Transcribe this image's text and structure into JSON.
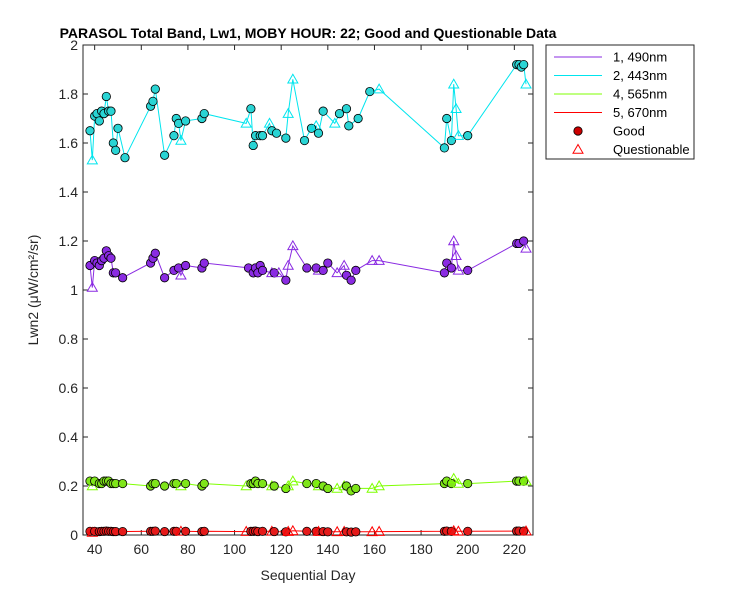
{
  "chart_data": {
    "type": "line",
    "title": "PARASOL Total Band, Lw1, MOBY HOUR: 22;  Good and Questionable Data",
    "xlabel": "Sequential Day",
    "ylabel": "Lwn2 (μW/cm²/sr)",
    "xlim": [
      35,
      228
    ],
    "ylim": [
      0,
      2
    ],
    "xticks": [
      40,
      60,
      80,
      100,
      120,
      140,
      160,
      180,
      200,
      220
    ],
    "yticks": [
      0,
      0.2,
      0.4,
      0.6,
      0.8,
      1,
      1.2,
      1.4,
      1.6,
      1.8,
      2
    ],
    "ytick_labels": [
      "0",
      "0.2",
      "0.4",
      "0.6",
      "0.8",
      "1",
      "1.2",
      "1.4",
      "1.6",
      "1.8",
      "2"
    ],
    "grid": false,
    "legend_position": "outside-top-right",
    "series": [
      {
        "name": "1, 490nm",
        "color": "#8a2be2",
        "fill": "#8a2be2",
        "points": [
          [
            38,
            1.1,
            "g"
          ],
          [
            39,
            1.01,
            "q"
          ],
          [
            40,
            1.12,
            "g"
          ],
          [
            41,
            1.11,
            "g"
          ],
          [
            42,
            1.1,
            "g"
          ],
          [
            43,
            1.12,
            "g"
          ],
          [
            44,
            1.13,
            "g"
          ],
          [
            45,
            1.16,
            "g"
          ],
          [
            46,
            1.14,
            "g"
          ],
          [
            47,
            1.13,
            "g"
          ],
          [
            48,
            1.07,
            "g"
          ],
          [
            49,
            1.07,
            "g"
          ],
          [
            52,
            1.05,
            "g"
          ],
          [
            64,
            1.11,
            "g"
          ],
          [
            65,
            1.13,
            "g"
          ],
          [
            66,
            1.15,
            "g"
          ],
          [
            70,
            1.05,
            "g"
          ],
          [
            74,
            1.08,
            "g"
          ],
          [
            76,
            1.09,
            "g"
          ],
          [
            77,
            1.06,
            "q"
          ],
          [
            79,
            1.1,
            "g"
          ],
          [
            86,
            1.09,
            "g"
          ],
          [
            87,
            1.11,
            "g"
          ],
          [
            106,
            1.09,
            "g"
          ],
          [
            108,
            1.07,
            "g"
          ],
          [
            109,
            1.09,
            "g"
          ],
          [
            110,
            1.07,
            "g"
          ],
          [
            111,
            1.1,
            "g"
          ],
          [
            112,
            1.08,
            "g"
          ],
          [
            116,
            1.07,
            "q"
          ],
          [
            117,
            1.07,
            "g"
          ],
          [
            119,
            1.07,
            "q"
          ],
          [
            122,
            1.04,
            "g"
          ],
          [
            123,
            1.1,
            "q"
          ],
          [
            125,
            1.18,
            "q"
          ],
          [
            131,
            1.09,
            "g"
          ],
          [
            135,
            1.09,
            "g"
          ],
          [
            136,
            1.08,
            "q"
          ],
          [
            138,
            1.08,
            "g"
          ],
          [
            140,
            1.11,
            "g"
          ],
          [
            144,
            1.07,
            "q"
          ],
          [
            147,
            1.1,
            "q"
          ],
          [
            148,
            1.06,
            "g"
          ],
          [
            150,
            1.04,
            "g"
          ],
          [
            152,
            1.08,
            "g"
          ],
          [
            159,
            1.12,
            "q"
          ],
          [
            162,
            1.12,
            "q"
          ],
          [
            190,
            1.07,
            "g"
          ],
          [
            191,
            1.11,
            "g"
          ],
          [
            193,
            1.09,
            "g"
          ],
          [
            194,
            1.2,
            "q"
          ],
          [
            195,
            1.14,
            "q"
          ],
          [
            196,
            1.08,
            "q"
          ],
          [
            200,
            1.08,
            "g"
          ],
          [
            221,
            1.19,
            "g"
          ],
          [
            222,
            1.19,
            "g"
          ],
          [
            224,
            1.2,
            "g"
          ],
          [
            225,
            1.17,
            "q"
          ]
        ]
      },
      {
        "name": "2, 443nm",
        "color": "#00e5ee",
        "fill": "#2ad4d4",
        "points": [
          [
            38,
            1.65,
            "g"
          ],
          [
            39,
            1.53,
            "q"
          ],
          [
            40,
            1.71,
            "g"
          ],
          [
            41,
            1.72,
            "g"
          ],
          [
            42,
            1.69,
            "g"
          ],
          [
            43,
            1.73,
            "g"
          ],
          [
            44,
            1.72,
            "g"
          ],
          [
            45,
            1.79,
            "g"
          ],
          [
            46,
            1.73,
            "g"
          ],
          [
            47,
            1.73,
            "g"
          ],
          [
            48,
            1.6,
            "g"
          ],
          [
            49,
            1.57,
            "g"
          ],
          [
            50,
            1.66,
            "g"
          ],
          [
            53,
            1.54,
            "g"
          ],
          [
            64,
            1.75,
            "g"
          ],
          [
            65,
            1.77,
            "g"
          ],
          [
            66,
            1.82,
            "g"
          ],
          [
            70,
            1.55,
            "g"
          ],
          [
            74,
            1.63,
            "g"
          ],
          [
            75,
            1.7,
            "g"
          ],
          [
            76,
            1.68,
            "g"
          ],
          [
            77,
            1.61,
            "q"
          ],
          [
            79,
            1.69,
            "g"
          ],
          [
            86,
            1.7,
            "g"
          ],
          [
            87,
            1.72,
            "g"
          ],
          [
            105,
            1.68,
            "q"
          ],
          [
            107,
            1.74,
            "g"
          ],
          [
            108,
            1.59,
            "g"
          ],
          [
            109,
            1.63,
            "g"
          ],
          [
            111,
            1.63,
            "g"
          ],
          [
            112,
            1.63,
            "g"
          ],
          [
            115,
            1.68,
            "q"
          ],
          [
            116,
            1.65,
            "g"
          ],
          [
            118,
            1.64,
            "g"
          ],
          [
            122,
            1.62,
            "g"
          ],
          [
            123,
            1.72,
            "q"
          ],
          [
            125,
            1.86,
            "q"
          ],
          [
            130,
            1.61,
            "g"
          ],
          [
            133,
            1.66,
            "g"
          ],
          [
            135,
            1.67,
            "q"
          ],
          [
            136,
            1.64,
            "g"
          ],
          [
            138,
            1.73,
            "g"
          ],
          [
            143,
            1.68,
            "q"
          ],
          [
            145,
            1.72,
            "g"
          ],
          [
            148,
            1.74,
            "g"
          ],
          [
            149,
            1.67,
            "g"
          ],
          [
            153,
            1.7,
            "g"
          ],
          [
            158,
            1.81,
            "g"
          ],
          [
            162,
            1.82,
            "q"
          ],
          [
            190,
            1.58,
            "g"
          ],
          [
            191,
            1.7,
            "g"
          ],
          [
            193,
            1.61,
            "g"
          ],
          [
            194,
            1.84,
            "q"
          ],
          [
            195,
            1.74,
            "q"
          ],
          [
            196,
            1.63,
            "q"
          ],
          [
            200,
            1.63,
            "g"
          ],
          [
            221,
            1.92,
            "g"
          ],
          [
            222,
            1.92,
            "g"
          ],
          [
            223,
            1.91,
            "g"
          ],
          [
            224,
            1.92,
            "g"
          ],
          [
            225,
            1.84,
            "q"
          ]
        ]
      },
      {
        "name": "4, 565nm",
        "color": "#7fff00",
        "fill": "#7fe51a",
        "points": [
          [
            38,
            0.22,
            "g"
          ],
          [
            39,
            0.2,
            "q"
          ],
          [
            40,
            0.22,
            "g"
          ],
          [
            42,
            0.21,
            "g"
          ],
          [
            43,
            0.21,
            "g"
          ],
          [
            44,
            0.22,
            "g"
          ],
          [
            45,
            0.22,
            "g"
          ],
          [
            46,
            0.22,
            "g"
          ],
          [
            47,
            0.21,
            "g"
          ],
          [
            48,
            0.21,
            "g"
          ],
          [
            49,
            0.21,
            "g"
          ],
          [
            52,
            0.21,
            "g"
          ],
          [
            64,
            0.2,
            "g"
          ],
          [
            65,
            0.21,
            "g"
          ],
          [
            66,
            0.21,
            "g"
          ],
          [
            70,
            0.2,
            "g"
          ],
          [
            74,
            0.21,
            "g"
          ],
          [
            75,
            0.21,
            "g"
          ],
          [
            77,
            0.2,
            "q"
          ],
          [
            79,
            0.21,
            "g"
          ],
          [
            86,
            0.2,
            "g"
          ],
          [
            87,
            0.21,
            "g"
          ],
          [
            105,
            0.2,
            "q"
          ],
          [
            107,
            0.21,
            "g"
          ],
          [
            108,
            0.21,
            "g"
          ],
          [
            109,
            0.22,
            "g"
          ],
          [
            110,
            0.21,
            "g"
          ],
          [
            112,
            0.21,
            "g"
          ],
          [
            116,
            0.2,
            "q"
          ],
          [
            117,
            0.2,
            "g"
          ],
          [
            122,
            0.19,
            "g"
          ],
          [
            123,
            0.2,
            "q"
          ],
          [
            125,
            0.22,
            "q"
          ],
          [
            131,
            0.21,
            "g"
          ],
          [
            135,
            0.21,
            "g"
          ],
          [
            136,
            0.2,
            "q"
          ],
          [
            138,
            0.2,
            "g"
          ],
          [
            140,
            0.19,
            "g"
          ],
          [
            144,
            0.19,
            "q"
          ],
          [
            147,
            0.2,
            "q"
          ],
          [
            148,
            0.2,
            "g"
          ],
          [
            150,
            0.18,
            "g"
          ],
          [
            152,
            0.19,
            "g"
          ],
          [
            159,
            0.19,
            "q"
          ],
          [
            162,
            0.2,
            "q"
          ],
          [
            190,
            0.21,
            "g"
          ],
          [
            191,
            0.22,
            "g"
          ],
          [
            193,
            0.21,
            "g"
          ],
          [
            194,
            0.23,
            "q"
          ],
          [
            196,
            0.21,
            "q"
          ],
          [
            200,
            0.21,
            "g"
          ],
          [
            221,
            0.22,
            "g"
          ],
          [
            222,
            0.22,
            "g"
          ],
          [
            224,
            0.22,
            "g"
          ],
          [
            225,
            0.22,
            "q"
          ]
        ]
      },
      {
        "name": "5, 670nm",
        "color": "#ff0000",
        "fill": "#e51a1a",
        "points": [
          [
            38,
            0.015,
            "g"
          ],
          [
            39,
            0.01,
            "q"
          ],
          [
            40,
            0.015,
            "g"
          ],
          [
            42,
            0.014,
            "g"
          ],
          [
            43,
            0.015,
            "g"
          ],
          [
            44,
            0.015,
            "g"
          ],
          [
            45,
            0.016,
            "g"
          ],
          [
            46,
            0.015,
            "g"
          ],
          [
            47,
            0.015,
            "g"
          ],
          [
            48,
            0.014,
            "g"
          ],
          [
            49,
            0.014,
            "g"
          ],
          [
            52,
            0.014,
            "g"
          ],
          [
            64,
            0.015,
            "g"
          ],
          [
            65,
            0.015,
            "g"
          ],
          [
            66,
            0.016,
            "g"
          ],
          [
            70,
            0.014,
            "g"
          ],
          [
            74,
            0.015,
            "g"
          ],
          [
            75,
            0.015,
            "g"
          ],
          [
            77,
            0.015,
            "q"
          ],
          [
            79,
            0.015,
            "g"
          ],
          [
            86,
            0.014,
            "g"
          ],
          [
            87,
            0.015,
            "g"
          ],
          [
            105,
            0.014,
            "q"
          ],
          [
            107,
            0.015,
            "g"
          ],
          [
            108,
            0.015,
            "g"
          ],
          [
            109,
            0.016,
            "g"
          ],
          [
            110,
            0.014,
            "g"
          ],
          [
            112,
            0.015,
            "g"
          ],
          [
            116,
            0.015,
            "q"
          ],
          [
            117,
            0.014,
            "g"
          ],
          [
            122,
            0.013,
            "g"
          ],
          [
            123,
            0.014,
            "q"
          ],
          [
            125,
            0.017,
            "q"
          ],
          [
            131,
            0.015,
            "g"
          ],
          [
            135,
            0.015,
            "g"
          ],
          [
            136,
            0.014,
            "q"
          ],
          [
            138,
            0.014,
            "g"
          ],
          [
            140,
            0.013,
            "g"
          ],
          [
            144,
            0.013,
            "q"
          ],
          [
            147,
            0.014,
            "q"
          ],
          [
            148,
            0.013,
            "g"
          ],
          [
            150,
            0.012,
            "g"
          ],
          [
            152,
            0.013,
            "g"
          ],
          [
            159,
            0.013,
            "q"
          ],
          [
            162,
            0.014,
            "q"
          ],
          [
            190,
            0.015,
            "g"
          ],
          [
            191,
            0.016,
            "g"
          ],
          [
            193,
            0.015,
            "g"
          ],
          [
            194,
            0.017,
            "q"
          ],
          [
            196,
            0.015,
            "q"
          ],
          [
            200,
            0.015,
            "g"
          ],
          [
            221,
            0.016,
            "g"
          ],
          [
            222,
            0.016,
            "g"
          ],
          [
            224,
            0.016,
            "g"
          ],
          [
            225,
            0.016,
            "q"
          ]
        ]
      }
    ],
    "legend": {
      "marker_entries": [
        {
          "label": "Good",
          "marker": "circle",
          "color": "#ff0000",
          "fill": "#cc0000"
        },
        {
          "label": "Questionable",
          "marker": "triangle",
          "color": "#ff0000",
          "fill": "none"
        }
      ]
    }
  }
}
